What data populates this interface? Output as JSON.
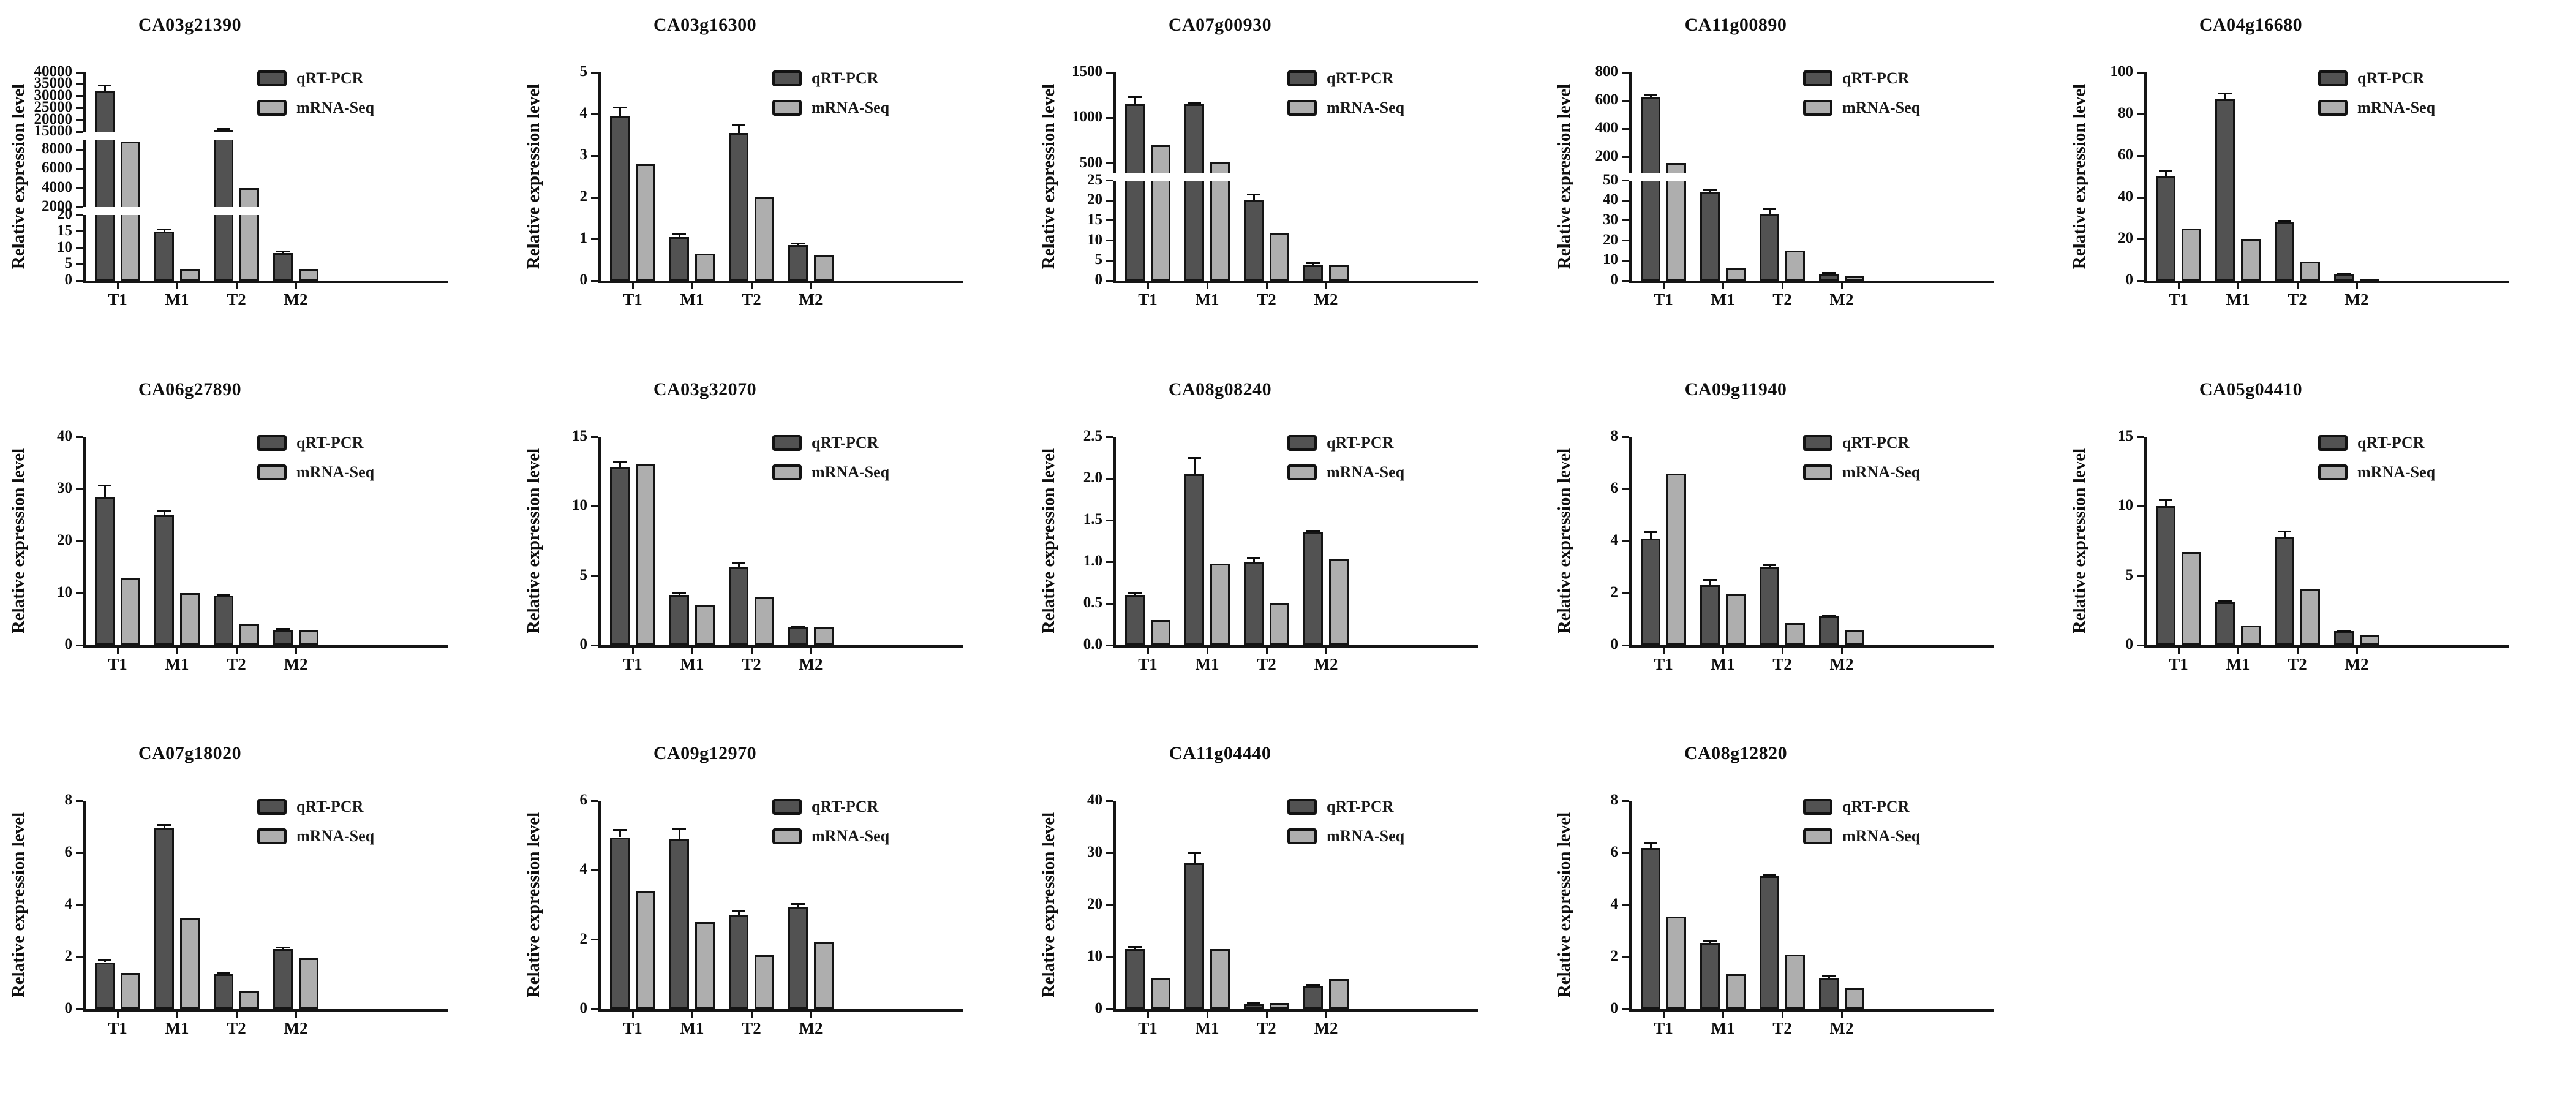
{
  "figure": {
    "background": "#ffffff",
    "ylabel": "Relative expression level",
    "categories": [
      "T1",
      "M1",
      "T2",
      "M2"
    ],
    "legend": {
      "position": "top-right",
      "items": [
        {
          "label": "qRT-PCR",
          "color": "#525252"
        },
        {
          "label": "mRNA-Seq",
          "color": "#aeaeae"
        }
      ]
    },
    "colors": {
      "qrt_pcr_bar": "#525252",
      "mrna_seq_bar": "#aeaeae",
      "bar_border": "#141414",
      "axis": "#151515",
      "text": "#0f0f0f"
    }
  },
  "chart_data": [
    {
      "type": "bar",
      "title": "CA03g21390",
      "row": 0,
      "col": 0,
      "xlabel": "",
      "ylabel": "Relative expression level",
      "grid": false,
      "legend_position": "top-right",
      "categories": [
        "T1",
        "M1",
        "T2",
        "M2"
      ],
      "axis_segments": [
        {
          "min": 0,
          "max": 20,
          "ticks": [
            0,
            5,
            10,
            15,
            20
          ],
          "tick_labels": [
            "0",
            "5",
            "10",
            "15",
            "20"
          ],
          "height_frac": 0.34
        },
        {
          "min": 2000,
          "max": 9000,
          "ticks": [
            2000,
            4000,
            6000,
            8000
          ],
          "tick_labels": [
            "2000",
            "4000",
            "6000",
            "8000"
          ],
          "height_frac": 0.35
        },
        {
          "min": 15000,
          "max": 40000,
          "ticks": [
            15000,
            20000,
            25000,
            30000,
            35000,
            40000
          ],
          "tick_labels": [
            "15000",
            "20000",
            "25000",
            "30000",
            "35000",
            "40000"
          ],
          "height_frac": 0.31
        }
      ],
      "series": [
        {
          "name": "qRT-PCR",
          "values": [
            32000,
            15,
            15600,
            8.5
          ],
          "errors": [
            2500,
            0.6,
            600,
            0.4
          ]
        },
        {
          "name": "mRNA-Seq",
          "values": [
            8800,
            3.5,
            4000,
            3.5
          ],
          "errors": [
            0,
            0,
            0,
            0
          ]
        }
      ]
    },
    {
      "type": "bar",
      "title": "CA03g16300",
      "row": 0,
      "col": 1,
      "xlabel": "",
      "ylabel": "Relative expression level",
      "grid": false,
      "legend_position": "top-right",
      "categories": [
        "T1",
        "M1",
        "T2",
        "M2"
      ],
      "axis_segments": [
        {
          "min": 0,
          "max": 5,
          "ticks": [
            0,
            1,
            2,
            3,
            4,
            5
          ],
          "tick_labels": [
            "0",
            "1",
            "2",
            "3",
            "4",
            "5"
          ],
          "height_frac": 1
        }
      ],
      "series": [
        {
          "name": "qRT-PCR",
          "values": [
            3.95,
            1.05,
            3.55,
            0.85
          ],
          "errors": [
            0.2,
            0.06,
            0.18,
            0.04
          ]
        },
        {
          "name": "mRNA-Seq",
          "values": [
            2.8,
            0.65,
            2.0,
            0.6
          ],
          "errors": [
            0,
            0,
            0,
            0
          ]
        }
      ]
    },
    {
      "type": "bar",
      "title": "CA07g00930",
      "row": 0,
      "col": 2,
      "xlabel": "",
      "ylabel": "Relative expression level",
      "grid": false,
      "legend_position": "top-right",
      "categories": [
        "T1",
        "M1",
        "T2",
        "M2"
      ],
      "axis_segments": [
        {
          "min": 0,
          "max": 25,
          "ticks": [
            0,
            5,
            10,
            15,
            20,
            25
          ],
          "tick_labels": [
            "0",
            "5",
            "10",
            "15",
            "20",
            "25"
          ],
          "height_frac": 0.5
        },
        {
          "min": 400,
          "max": 1500,
          "ticks": [
            500,
            1000,
            1500
          ],
          "tick_labels": [
            "500",
            "1000",
            "1500"
          ],
          "height_frac": 0.5
        }
      ],
      "series": [
        {
          "name": "qRT-PCR",
          "values": [
            1150,
            1150,
            20,
            4
          ],
          "errors": [
            75,
            15,
            1.5,
            0.3
          ]
        },
        {
          "name": "mRNA-Seq",
          "values": [
            700,
            520,
            12,
            4
          ],
          "errors": [
            0,
            0,
            0,
            0
          ]
        }
      ]
    },
    {
      "type": "bar",
      "title": "CA11g00890",
      "row": 0,
      "col": 3,
      "xlabel": "",
      "ylabel": "Relative expression level",
      "grid": false,
      "legend_position": "top-right",
      "categories": [
        "T1",
        "M1",
        "T2",
        "M2"
      ],
      "axis_segments": [
        {
          "min": 0,
          "max": 50,
          "ticks": [
            0,
            10,
            20,
            30,
            40,
            50
          ],
          "tick_labels": [
            "0",
            "10",
            "20",
            "30",
            "40",
            "50"
          ],
          "height_frac": 0.5
        },
        {
          "min": 90,
          "max": 800,
          "ticks": [
            200,
            400,
            600,
            800
          ],
          "tick_labels": [
            "200",
            "400",
            "600",
            "800"
          ],
          "height_frac": 0.5
        }
      ],
      "series": [
        {
          "name": "qRT-PCR",
          "values": [
            620,
            44,
            33,
            3.5
          ],
          "errors": [
            15,
            1,
            2.5,
            0.3
          ]
        },
        {
          "name": "mRNA-Seq",
          "values": [
            158,
            6,
            15,
            2.5
          ],
          "errors": [
            0,
            0,
            0,
            0
          ]
        }
      ]
    },
    {
      "type": "bar",
      "title": "CA04g16680",
      "row": 0,
      "col": 4,
      "xlabel": "",
      "ylabel": "Relative expression level",
      "grid": false,
      "legend_position": "top-right",
      "categories": [
        "T1",
        "M1",
        "T2",
        "M2"
      ],
      "axis_segments": [
        {
          "min": 0,
          "max": 100,
          "ticks": [
            0,
            20,
            40,
            60,
            80,
            100
          ],
          "tick_labels": [
            "0",
            "20",
            "40",
            "60",
            "80",
            "100"
          ],
          "height_frac": 1
        }
      ],
      "series": [
        {
          "name": "qRT-PCR",
          "values": [
            50,
            87,
            28,
            3
          ],
          "errors": [
            2.5,
            3,
            0.6,
            0.5
          ]
        },
        {
          "name": "mRNA-Seq",
          "values": [
            25,
            20,
            9,
            1
          ],
          "errors": [
            0,
            0,
            0,
            0
          ]
        }
      ]
    },
    {
      "type": "bar",
      "title": "CA06g27890",
      "row": 1,
      "col": 0,
      "xlabel": "",
      "ylabel": "Relative expression level",
      "grid": false,
      "legend_position": "top-right",
      "categories": [
        "T1",
        "M1",
        "T2",
        "M2"
      ],
      "axis_segments": [
        {
          "min": 0,
          "max": 40,
          "ticks": [
            0,
            10,
            20,
            30,
            40
          ],
          "tick_labels": [
            "0",
            "10",
            "20",
            "30",
            "40"
          ],
          "height_frac": 1
        }
      ],
      "series": [
        {
          "name": "qRT-PCR",
          "values": [
            28.5,
            25,
            9.5,
            3
          ],
          "errors": [
            2.2,
            0.7,
            0.2,
            0.15
          ]
        },
        {
          "name": "mRNA-Seq",
          "values": [
            13,
            10,
            4,
            3
          ],
          "errors": [
            0,
            0,
            0,
            0
          ]
        }
      ]
    },
    {
      "type": "bar",
      "title": "CA03g32070",
      "row": 1,
      "col": 1,
      "xlabel": "",
      "ylabel": "Relative expression level",
      "grid": false,
      "legend_position": "top-right",
      "categories": [
        "T1",
        "M1",
        "T2",
        "M2"
      ],
      "axis_segments": [
        {
          "min": 0,
          "max": 15,
          "ticks": [
            0,
            5,
            10,
            15
          ],
          "tick_labels": [
            "0",
            "5",
            "10",
            "15"
          ],
          "height_frac": 1
        }
      ],
      "series": [
        {
          "name": "qRT-PCR",
          "values": [
            12.8,
            3.6,
            5.6,
            1.3
          ],
          "errors": [
            0.4,
            0.15,
            0.3,
            0.06
          ]
        },
        {
          "name": "mRNA-Seq",
          "values": [
            13,
            2.9,
            3.5,
            1.3
          ],
          "errors": [
            0,
            0,
            0,
            0
          ]
        }
      ]
    },
    {
      "type": "bar",
      "title": "CA08g08240",
      "row": 1,
      "col": 2,
      "xlabel": "",
      "ylabel": "Relative expression level",
      "grid": false,
      "legend_position": "top-right",
      "categories": [
        "T1",
        "M1",
        "T2",
        "M2"
      ],
      "axis_segments": [
        {
          "min": 0,
          "max": 2.5,
          "ticks": [
            0,
            0.5,
            1.0,
            1.5,
            2.0,
            2.5
          ],
          "tick_labels": [
            "0.0",
            "0.5",
            "1.0",
            "1.5",
            "2.0",
            "2.5"
          ],
          "height_frac": 1
        }
      ],
      "series": [
        {
          "name": "qRT-PCR",
          "values": [
            0.6,
            2.05,
            1.0,
            1.35
          ],
          "errors": [
            0.03,
            0.2,
            0.05,
            0.02
          ]
        },
        {
          "name": "mRNA-Seq",
          "values": [
            0.3,
            0.98,
            0.5,
            1.03
          ],
          "errors": [
            0,
            0,
            0,
            0
          ]
        }
      ]
    },
    {
      "type": "bar",
      "title": "CA09g11940",
      "row": 1,
      "col": 3,
      "xlabel": "",
      "ylabel": "Relative expression level",
      "grid": false,
      "legend_position": "top-right",
      "categories": [
        "T1",
        "M1",
        "T2",
        "M2"
      ],
      "axis_segments": [
        {
          "min": 0,
          "max": 8,
          "ticks": [
            0,
            2,
            4,
            6,
            8
          ],
          "tick_labels": [
            "0",
            "2",
            "4",
            "6",
            "8"
          ],
          "height_frac": 1
        }
      ],
      "series": [
        {
          "name": "qRT-PCR",
          "values": [
            4.1,
            2.3,
            3.0,
            1.1
          ],
          "errors": [
            0.25,
            0.2,
            0.06,
            0.03
          ]
        },
        {
          "name": "mRNA-Seq",
          "values": [
            6.6,
            1.95,
            0.85,
            0.6
          ],
          "errors": [
            0,
            0,
            0,
            0
          ]
        }
      ]
    },
    {
      "type": "bar",
      "title": "CA05g04410",
      "row": 1,
      "col": 4,
      "xlabel": "",
      "ylabel": "Relative expression level",
      "grid": false,
      "legend_position": "top-right",
      "categories": [
        "T1",
        "M1",
        "T2",
        "M2"
      ],
      "axis_segments": [
        {
          "min": 0,
          "max": 15,
          "ticks": [
            0,
            5,
            10,
            15
          ],
          "tick_labels": [
            "0",
            "5",
            "10",
            "15"
          ],
          "height_frac": 1
        }
      ],
      "series": [
        {
          "name": "qRT-PCR",
          "values": [
            10,
            3.1,
            7.8,
            1.0
          ],
          "errors": [
            0.45,
            0.1,
            0.4,
            0.05
          ]
        },
        {
          "name": "mRNA-Seq",
          "values": [
            6.7,
            1.4,
            4.0,
            0.7
          ],
          "errors": [
            0,
            0,
            0,
            0
          ]
        }
      ]
    },
    {
      "type": "bar",
      "title": "CA07g18020",
      "row": 2,
      "col": 0,
      "xlabel": "",
      "ylabel": "Relative expression level",
      "grid": false,
      "legend_position": "top-right",
      "categories": [
        "T1",
        "M1",
        "T2",
        "M2"
      ],
      "axis_segments": [
        {
          "min": 0,
          "max": 8,
          "ticks": [
            0,
            2,
            4,
            6,
            8
          ],
          "tick_labels": [
            "0",
            "2",
            "4",
            "6",
            "8"
          ],
          "height_frac": 1
        }
      ],
      "series": [
        {
          "name": "qRT-PCR",
          "values": [
            1.8,
            6.95,
            1.35,
            2.3
          ],
          "errors": [
            0.06,
            0.12,
            0.05,
            0.06
          ]
        },
        {
          "name": "mRNA-Seq",
          "values": [
            1.4,
            3.5,
            0.7,
            1.95
          ],
          "errors": [
            0,
            0,
            0,
            0
          ]
        }
      ]
    },
    {
      "type": "bar",
      "title": "CA09g12970",
      "row": 2,
      "col": 1,
      "xlabel": "",
      "ylabel": "Relative expression level",
      "grid": false,
      "legend_position": "top-right",
      "categories": [
        "T1",
        "M1",
        "T2",
        "M2"
      ],
      "axis_segments": [
        {
          "min": 0,
          "max": 6,
          "ticks": [
            0,
            2,
            4,
            6
          ],
          "tick_labels": [
            "0",
            "2",
            "4",
            "6"
          ],
          "height_frac": 1
        }
      ],
      "series": [
        {
          "name": "qRT-PCR",
          "values": [
            4.95,
            4.9,
            2.7,
            2.95
          ],
          "errors": [
            0.22,
            0.3,
            0.12,
            0.08
          ]
        },
        {
          "name": "mRNA-Seq",
          "values": [
            3.4,
            2.5,
            1.55,
            1.95
          ],
          "errors": [
            0,
            0,
            0,
            0
          ]
        }
      ]
    },
    {
      "type": "bar",
      "title": "CA11g04440",
      "row": 2,
      "col": 2,
      "xlabel": "",
      "ylabel": "Relative expression level",
      "grid": false,
      "legend_position": "top-right",
      "categories": [
        "T1",
        "M1",
        "T2",
        "M2"
      ],
      "axis_segments": [
        {
          "min": 0,
          "max": 40,
          "ticks": [
            0,
            10,
            20,
            30,
            40
          ],
          "tick_labels": [
            "0",
            "10",
            "20",
            "30",
            "40"
          ],
          "height_frac": 1
        }
      ],
      "series": [
        {
          "name": "qRT-PCR",
          "values": [
            11.5,
            28,
            1,
            4.5
          ],
          "errors": [
            0.4,
            2,
            0.15,
            0.2
          ]
        },
        {
          "name": "mRNA-Seq",
          "values": [
            6,
            11.5,
            1.2,
            5.8
          ],
          "errors": [
            0,
            0,
            0,
            0
          ]
        }
      ]
    },
    {
      "type": "bar",
      "title": "CA08g12820",
      "row": 2,
      "col": 3,
      "xlabel": "",
      "ylabel": "Relative expression level",
      "grid": false,
      "legend_position": "top-right",
      "categories": [
        "T1",
        "M1",
        "T2",
        "M2"
      ],
      "axis_segments": [
        {
          "min": 0,
          "max": 8,
          "ticks": [
            0,
            2,
            4,
            6,
            8
          ],
          "tick_labels": [
            "0",
            "2",
            "4",
            "6",
            "8"
          ],
          "height_frac": 1
        }
      ],
      "series": [
        {
          "name": "qRT-PCR",
          "values": [
            6.2,
            2.55,
            5.1,
            1.2
          ],
          "errors": [
            0.2,
            0.08,
            0.07,
            0.05
          ]
        },
        {
          "name": "mRNA-Seq",
          "values": [
            3.55,
            1.35,
            2.1,
            0.8
          ],
          "errors": [
            0,
            0,
            0,
            0
          ]
        }
      ]
    }
  ]
}
